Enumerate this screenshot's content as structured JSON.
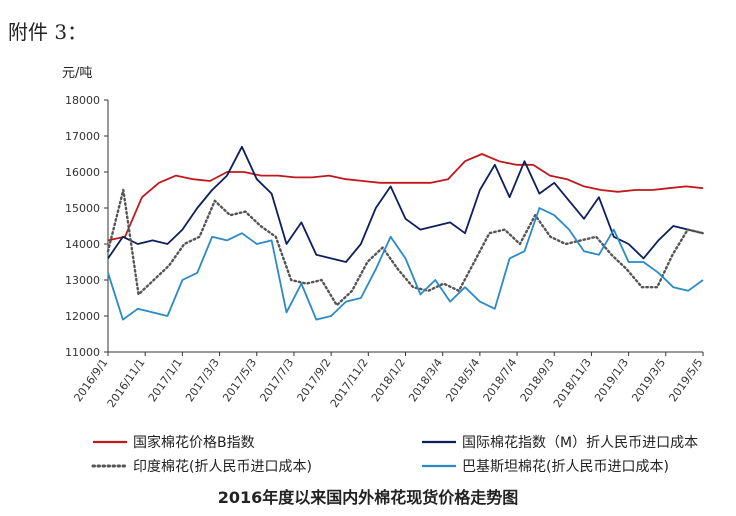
{
  "header_text": "附件 3：",
  "unit_label": "元/吨",
  "caption": "2016年度以来国内外棉花现货价格走势图",
  "chart_data": {
    "type": "line",
    "title": "2016年度以来国内外棉花现货价格走势图",
    "ylabel": "元/吨",
    "xlabel": "",
    "ylim": [
      11000,
      18000
    ],
    "yticks": [
      11000,
      12000,
      13000,
      14000,
      15000,
      16000,
      17000,
      18000
    ],
    "x_tick_labels": [
      "2016/9/1",
      "2016/11/1",
      "2017/1/1",
      "2017/3/3",
      "2017/5/3",
      "2017/7/3",
      "2017/9/2",
      "2017/11/2",
      "2018/1/2",
      "2018/3/4",
      "2018/5/4",
      "2018/7/4",
      "2018/9/3",
      "2018/11/3",
      "2019/1/3",
      "2019/3/5",
      "2019/5/5"
    ],
    "grid": false,
    "legend_position": "bottom",
    "series": [
      {
        "name": "国家棉花价格B指数",
        "color": "#c0181b",
        "style": "solid",
        "values": [
          14100,
          14200,
          15300,
          15700,
          15900,
          15800,
          15750,
          16000,
          16000,
          15900,
          15900,
          15850,
          15850,
          15900,
          15800,
          15750,
          15700,
          15700,
          15700,
          15700,
          15800,
          16300,
          16500,
          16300,
          16200,
          16200,
          15900,
          15800,
          15600,
          15500,
          15450,
          15500,
          15500,
          15550,
          15600,
          15550
        ]
      },
      {
        "name": "国际棉花指数（M）折人民币进口成本",
        "color": "#0d1f5c",
        "style": "solid",
        "values": [
          13600,
          14200,
          14000,
          14100,
          14000,
          14400,
          15000,
          15500,
          15900,
          16700,
          15800,
          15400,
          14000,
          14600,
          13700,
          13600,
          13500,
          14000,
          15000,
          15600,
          14700,
          14400,
          14500,
          14600,
          14300,
          15500,
          16200,
          15300,
          16300,
          15400,
          15700,
          15200,
          14700,
          15300,
          14200,
          14000,
          13600,
          14100,
          14500,
          14400,
          14300
        ]
      },
      {
        "name": "印度棉花(折人民币进口成本)",
        "color": "#555555",
        "style": "dotted",
        "values": [
          13800,
          15500,
          12600,
          13000,
          13400,
          14000,
          14200,
          15200,
          14800,
          14900,
          14500,
          14200,
          13000,
          12900,
          13000,
          12300,
          12700,
          13500,
          13900,
          13300,
          12800,
          12700,
          12900,
          12700,
          13500,
          14300,
          14400,
          14000,
          14800,
          14200,
          14000,
          14100,
          14200,
          13700,
          13300,
          12800,
          12800,
          13700,
          14400,
          14300
        ]
      },
      {
        "name": "巴基斯坦棉花(折人民币进口成本)",
        "color": "#2b8ac6",
        "style": "solid",
        "values": [
          13200,
          11900,
          12200,
          12100,
          12000,
          13000,
          13200,
          14200,
          14100,
          14300,
          14000,
          14100,
          12100,
          12900,
          11900,
          12000,
          12400,
          12500,
          13300,
          14200,
          13600,
          12600,
          13000,
          12400,
          12800,
          12400,
          12200,
          13600,
          13800,
          15000,
          14800,
          14400,
          13800,
          13700,
          14400,
          13500,
          13500,
          13200,
          12800,
          12700,
          13000
        ]
      }
    ]
  }
}
